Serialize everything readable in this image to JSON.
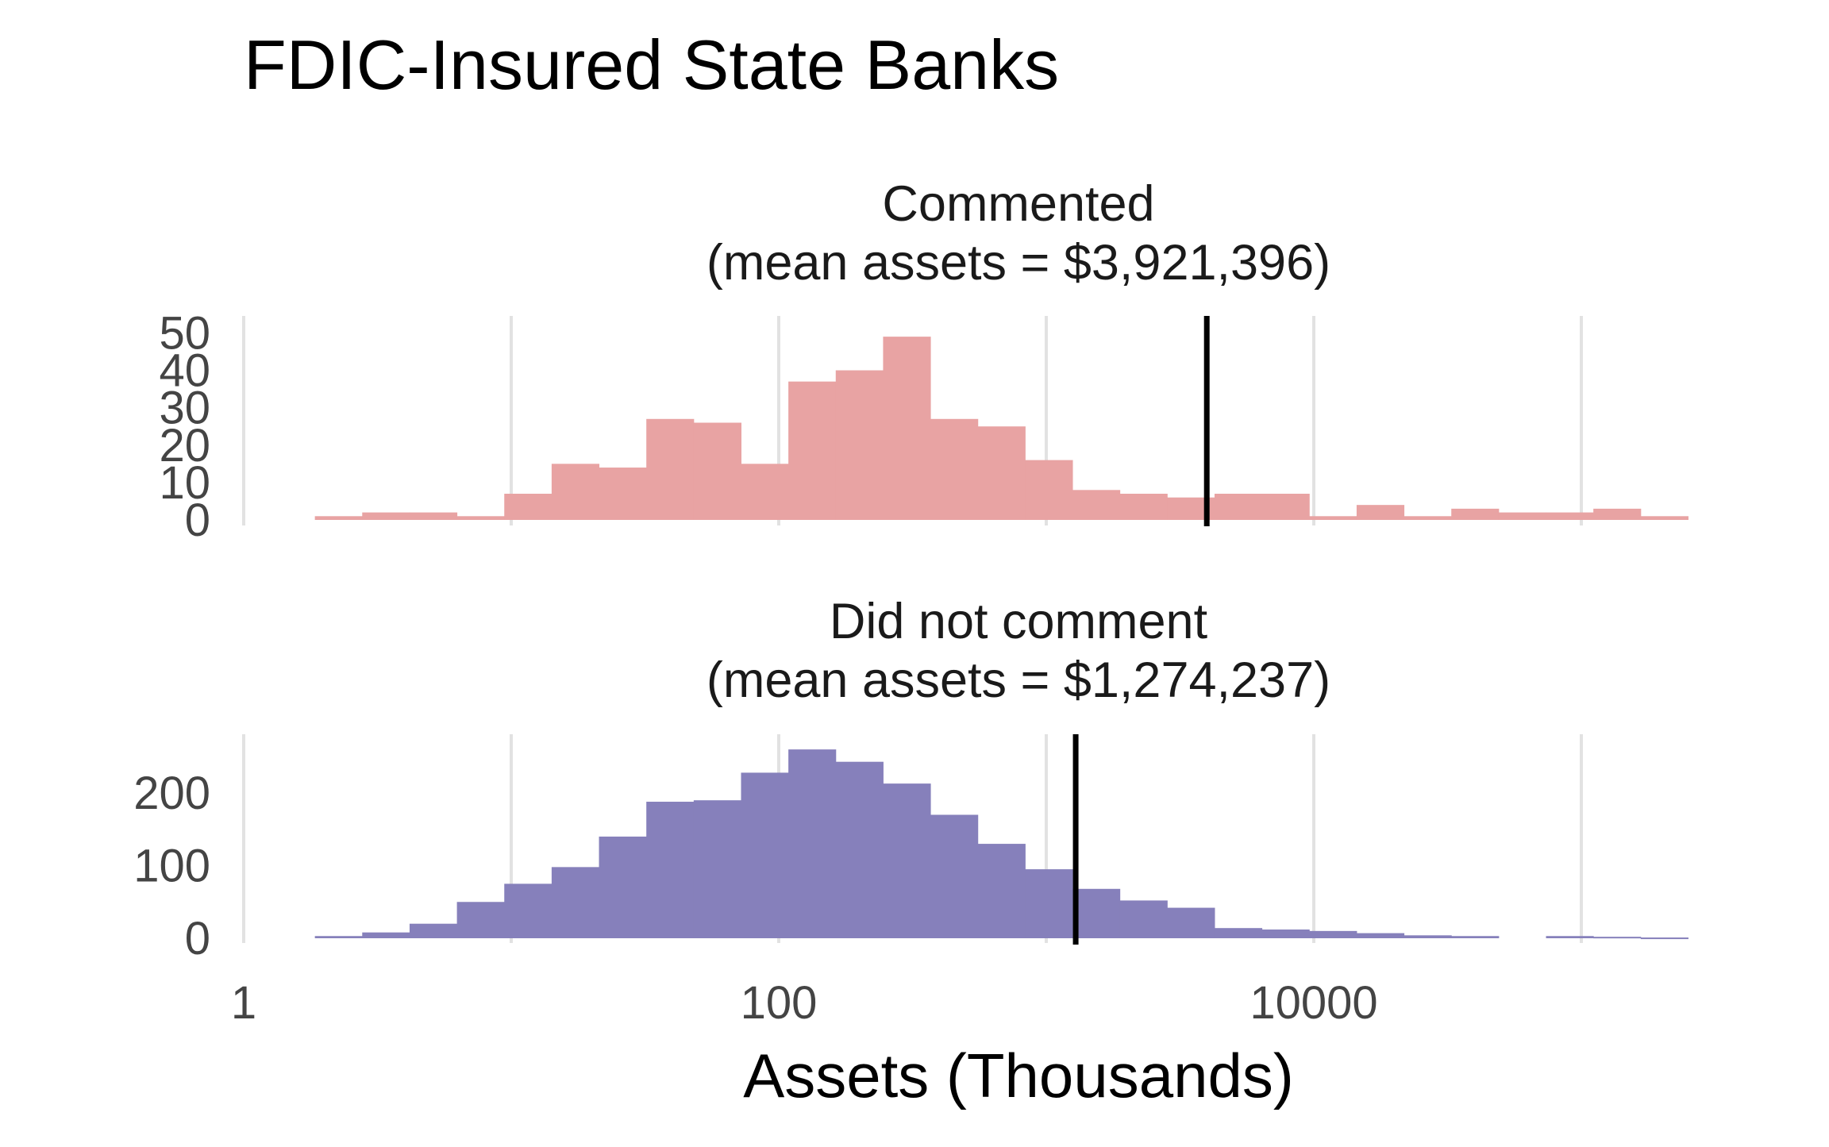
{
  "chart_data": {
    "type": "histogram",
    "title": "FDIC-Insured State Banks",
    "xlabel": "Assets (Thousands)",
    "x_scale": "log10",
    "x_ticks": [
      1,
      100,
      10000
    ],
    "x_tick_labels": [
      "1",
      "100",
      "10000"
    ],
    "xlim": [
      1,
      1000000
    ],
    "grid": "vertical",
    "bin_width_log10": 0.177,
    "bin_start_log10": 0.266,
    "facets": [
      {
        "name": "commented",
        "title_line1": "Commented",
        "title_line2": "(mean assets = $3,921,396)",
        "color": "#e8a3a3",
        "ylim": [
          0,
          52
        ],
        "y_ticks": [
          0,
          10,
          20,
          30,
          40,
          50
        ],
        "y_tick_labels": [
          "0",
          "10",
          "20",
          "30",
          "40",
          "50"
        ],
        "mean_log10": 3.6,
        "counts": [
          1,
          2,
          2,
          1,
          7,
          15,
          14,
          27,
          26,
          15,
          37,
          40,
          49,
          27,
          25,
          16,
          8,
          7,
          6,
          7,
          7,
          1,
          4,
          1,
          3,
          2,
          2,
          3,
          1
        ]
      },
      {
        "name": "did-not-comment",
        "title_line1": "Did not comment",
        "title_line2": "(mean assets = $1,274,237)",
        "color": "#8680bb",
        "ylim": [
          0,
          270
        ],
        "y_ticks": [
          0,
          100,
          200
        ],
        "y_tick_labels": [
          "0",
          "100",
          "200"
        ],
        "mean_log10": 3.11,
        "counts": [
          3,
          8,
          20,
          50,
          75,
          98,
          140,
          188,
          190,
          228,
          260,
          243,
          213,
          170,
          130,
          95,
          68,
          52,
          42,
          14,
          12,
          10,
          7,
          4,
          3,
          0,
          3,
          2,
          1
        ]
      }
    ]
  }
}
